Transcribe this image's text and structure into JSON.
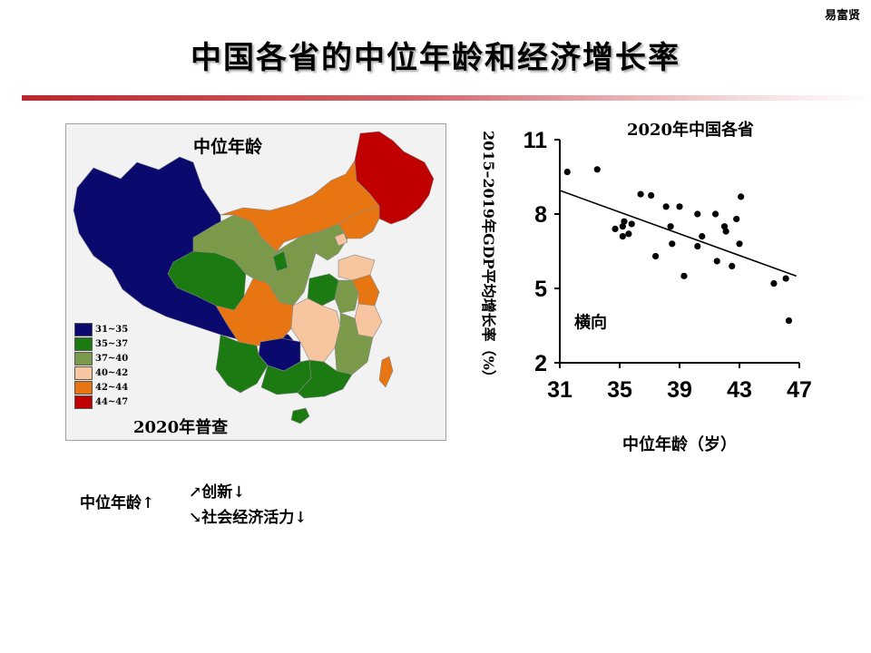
{
  "author": "易富贤",
  "title": "中国各省的中位年龄和经济增长率",
  "map": {
    "title": "中位年龄",
    "caption": "2020年普查",
    "legend": [
      {
        "label": "31~35",
        "color": "#0a0a6e"
      },
      {
        "label": "35~37",
        "color": "#1b7a12"
      },
      {
        "label": "37~40",
        "color": "#7a9a4a"
      },
      {
        "label": "40~42",
        "color": "#f7c6a0"
      },
      {
        "label": "42~44",
        "color": "#e67512"
      },
      {
        "label": "44~47",
        "color": "#c00000"
      }
    ]
  },
  "chart_data": {
    "type": "scatter",
    "title": "2020年中国各省",
    "xlabel": "中位年龄（岁）",
    "ylabel": "2015–2019年GDP平均增长率（%）",
    "xlim": [
      31,
      47
    ],
    "ylim": [
      2,
      11
    ],
    "xticks": [
      "31",
      "35",
      "39",
      "43",
      "47"
    ],
    "yticks": [
      "2",
      "5",
      "8",
      "11"
    ],
    "annotation": "横向",
    "trendline": {
      "x": [
        31,
        46.8
      ],
      "y": [
        8.95,
        5.5
      ]
    },
    "points": [
      {
        "x": 31.5,
        "y": 9.7
      },
      {
        "x": 33.5,
        "y": 9.8
      },
      {
        "x": 36.4,
        "y": 8.8
      },
      {
        "x": 37.1,
        "y": 8.75
      },
      {
        "x": 34.7,
        "y": 7.4
      },
      {
        "x": 35.2,
        "y": 7.5
      },
      {
        "x": 35.2,
        "y": 7.1
      },
      {
        "x": 35.3,
        "y": 7.7
      },
      {
        "x": 35.6,
        "y": 7.2
      },
      {
        "x": 35.8,
        "y": 7.6
      },
      {
        "x": 37.4,
        "y": 6.3
      },
      {
        "x": 38.1,
        "y": 8.3
      },
      {
        "x": 38.4,
        "y": 7.5
      },
      {
        "x": 38.5,
        "y": 6.8
      },
      {
        "x": 39.0,
        "y": 8.3
      },
      {
        "x": 39.3,
        "y": 5.5
      },
      {
        "x": 40.2,
        "y": 8.0
      },
      {
        "x": 40.5,
        "y": 7.1
      },
      {
        "x": 40.2,
        "y": 6.7
      },
      {
        "x": 41.4,
        "y": 8.0
      },
      {
        "x": 41.5,
        "y": 6.1
      },
      {
        "x": 42.0,
        "y": 7.5
      },
      {
        "x": 42.1,
        "y": 7.3
      },
      {
        "x": 42.5,
        "y": 5.9
      },
      {
        "x": 42.8,
        "y": 7.8
      },
      {
        "x": 43.0,
        "y": 6.8
      },
      {
        "x": 43.1,
        "y": 8.7
      },
      {
        "x": 45.3,
        "y": 5.2
      },
      {
        "x": 46.1,
        "y": 5.4
      },
      {
        "x": 46.3,
        "y": 3.7
      }
    ]
  },
  "notes": {
    "main": "中位年龄↑",
    "up": "↗创新↓",
    "down": "↘社会经济活力↓"
  }
}
